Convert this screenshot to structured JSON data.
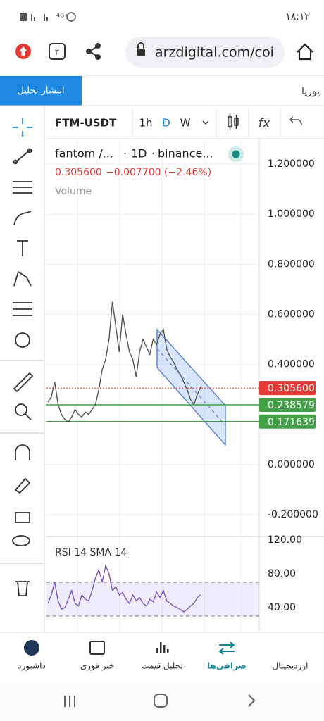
{
  "status_bar": {
    "time": "۱۸:۱۲"
  },
  "browser": {
    "tab_count": "۲",
    "url": "arzdigital.com/coi"
  },
  "header": {
    "publish_button": "انتشار تحلیل",
    "user": "پوریا"
  },
  "chart_toolbar": {
    "symbol": "FTM-USDT",
    "intervals": [
      "1h",
      "D",
      "W"
    ],
    "active_interval": "D"
  },
  "legend": {
    "title": "fantom /...",
    "interval": "1D",
    "exchange": "binance...",
    "price": "0.305600",
    "change": "−0.007700 (−2.46%)",
    "volume": "Volume"
  },
  "price_axis": {
    "ylim": [
      -0.2,
      1.2
    ],
    "ticks": [
      {
        "value": 1.2,
        "label": "1.200000"
      },
      {
        "value": 1.0,
        "label": "1.000000"
      },
      {
        "value": 0.8,
        "label": "0.800000"
      },
      {
        "value": 0.6,
        "label": "0.600000"
      },
      {
        "value": 0.4,
        "label": "0.400000"
      },
      {
        "value": 0.0,
        "label": "0.000000"
      },
      {
        "value": -0.2,
        "label": "-0.200000"
      }
    ],
    "badges": [
      {
        "value": 0.3056,
        "label": "0.305600",
        "color": "#e53935"
      },
      {
        "value": 0.238579,
        "label": "0.238579",
        "color": "#43a047"
      },
      {
        "value": 0.171639,
        "label": "0.171639",
        "color": "#43a047"
      }
    ]
  },
  "closes": [
    0.25,
    0.27,
    0.33,
    0.24,
    0.2,
    0.18,
    0.17,
    0.19,
    0.22,
    0.2,
    0.19,
    0.21,
    0.2,
    0.22,
    0.24,
    0.3,
    0.38,
    0.42,
    0.5,
    0.65,
    0.55,
    0.45,
    0.6,
    0.52,
    0.45,
    0.42,
    0.35,
    0.45,
    0.5,
    0.47,
    0.44,
    0.5,
    0.48,
    0.52,
    0.54,
    0.46,
    0.43,
    0.41,
    0.38,
    0.36,
    0.33,
    0.3,
    0.26,
    0.24,
    0.28,
    0.31
  ],
  "rsi": {
    "title": "RSI 14 SMA 14",
    "ticks": [
      {
        "value": 120,
        "label": "120.00"
      },
      {
        "value": 80,
        "label": "80.00"
      },
      {
        "value": 40,
        "label": "40.00"
      }
    ],
    "values": [
      45,
      55,
      70,
      48,
      38,
      40,
      50,
      60,
      45,
      42,
      55,
      50,
      48,
      60,
      75,
      85,
      70,
      90,
      80,
      60,
      65,
      55,
      58,
      50,
      45,
      55,
      48,
      52,
      45,
      42,
      50,
      47,
      58,
      52,
      60,
      48,
      45,
      42,
      40,
      38,
      35,
      38,
      42,
      45,
      52,
      55
    ]
  },
  "bottom_nav": [
    "داشبورد",
    "خبر فوری",
    "تحلیل قیمت",
    "صرافی‌ها",
    "ارزدیجیتال"
  ],
  "active_nav": 3
}
